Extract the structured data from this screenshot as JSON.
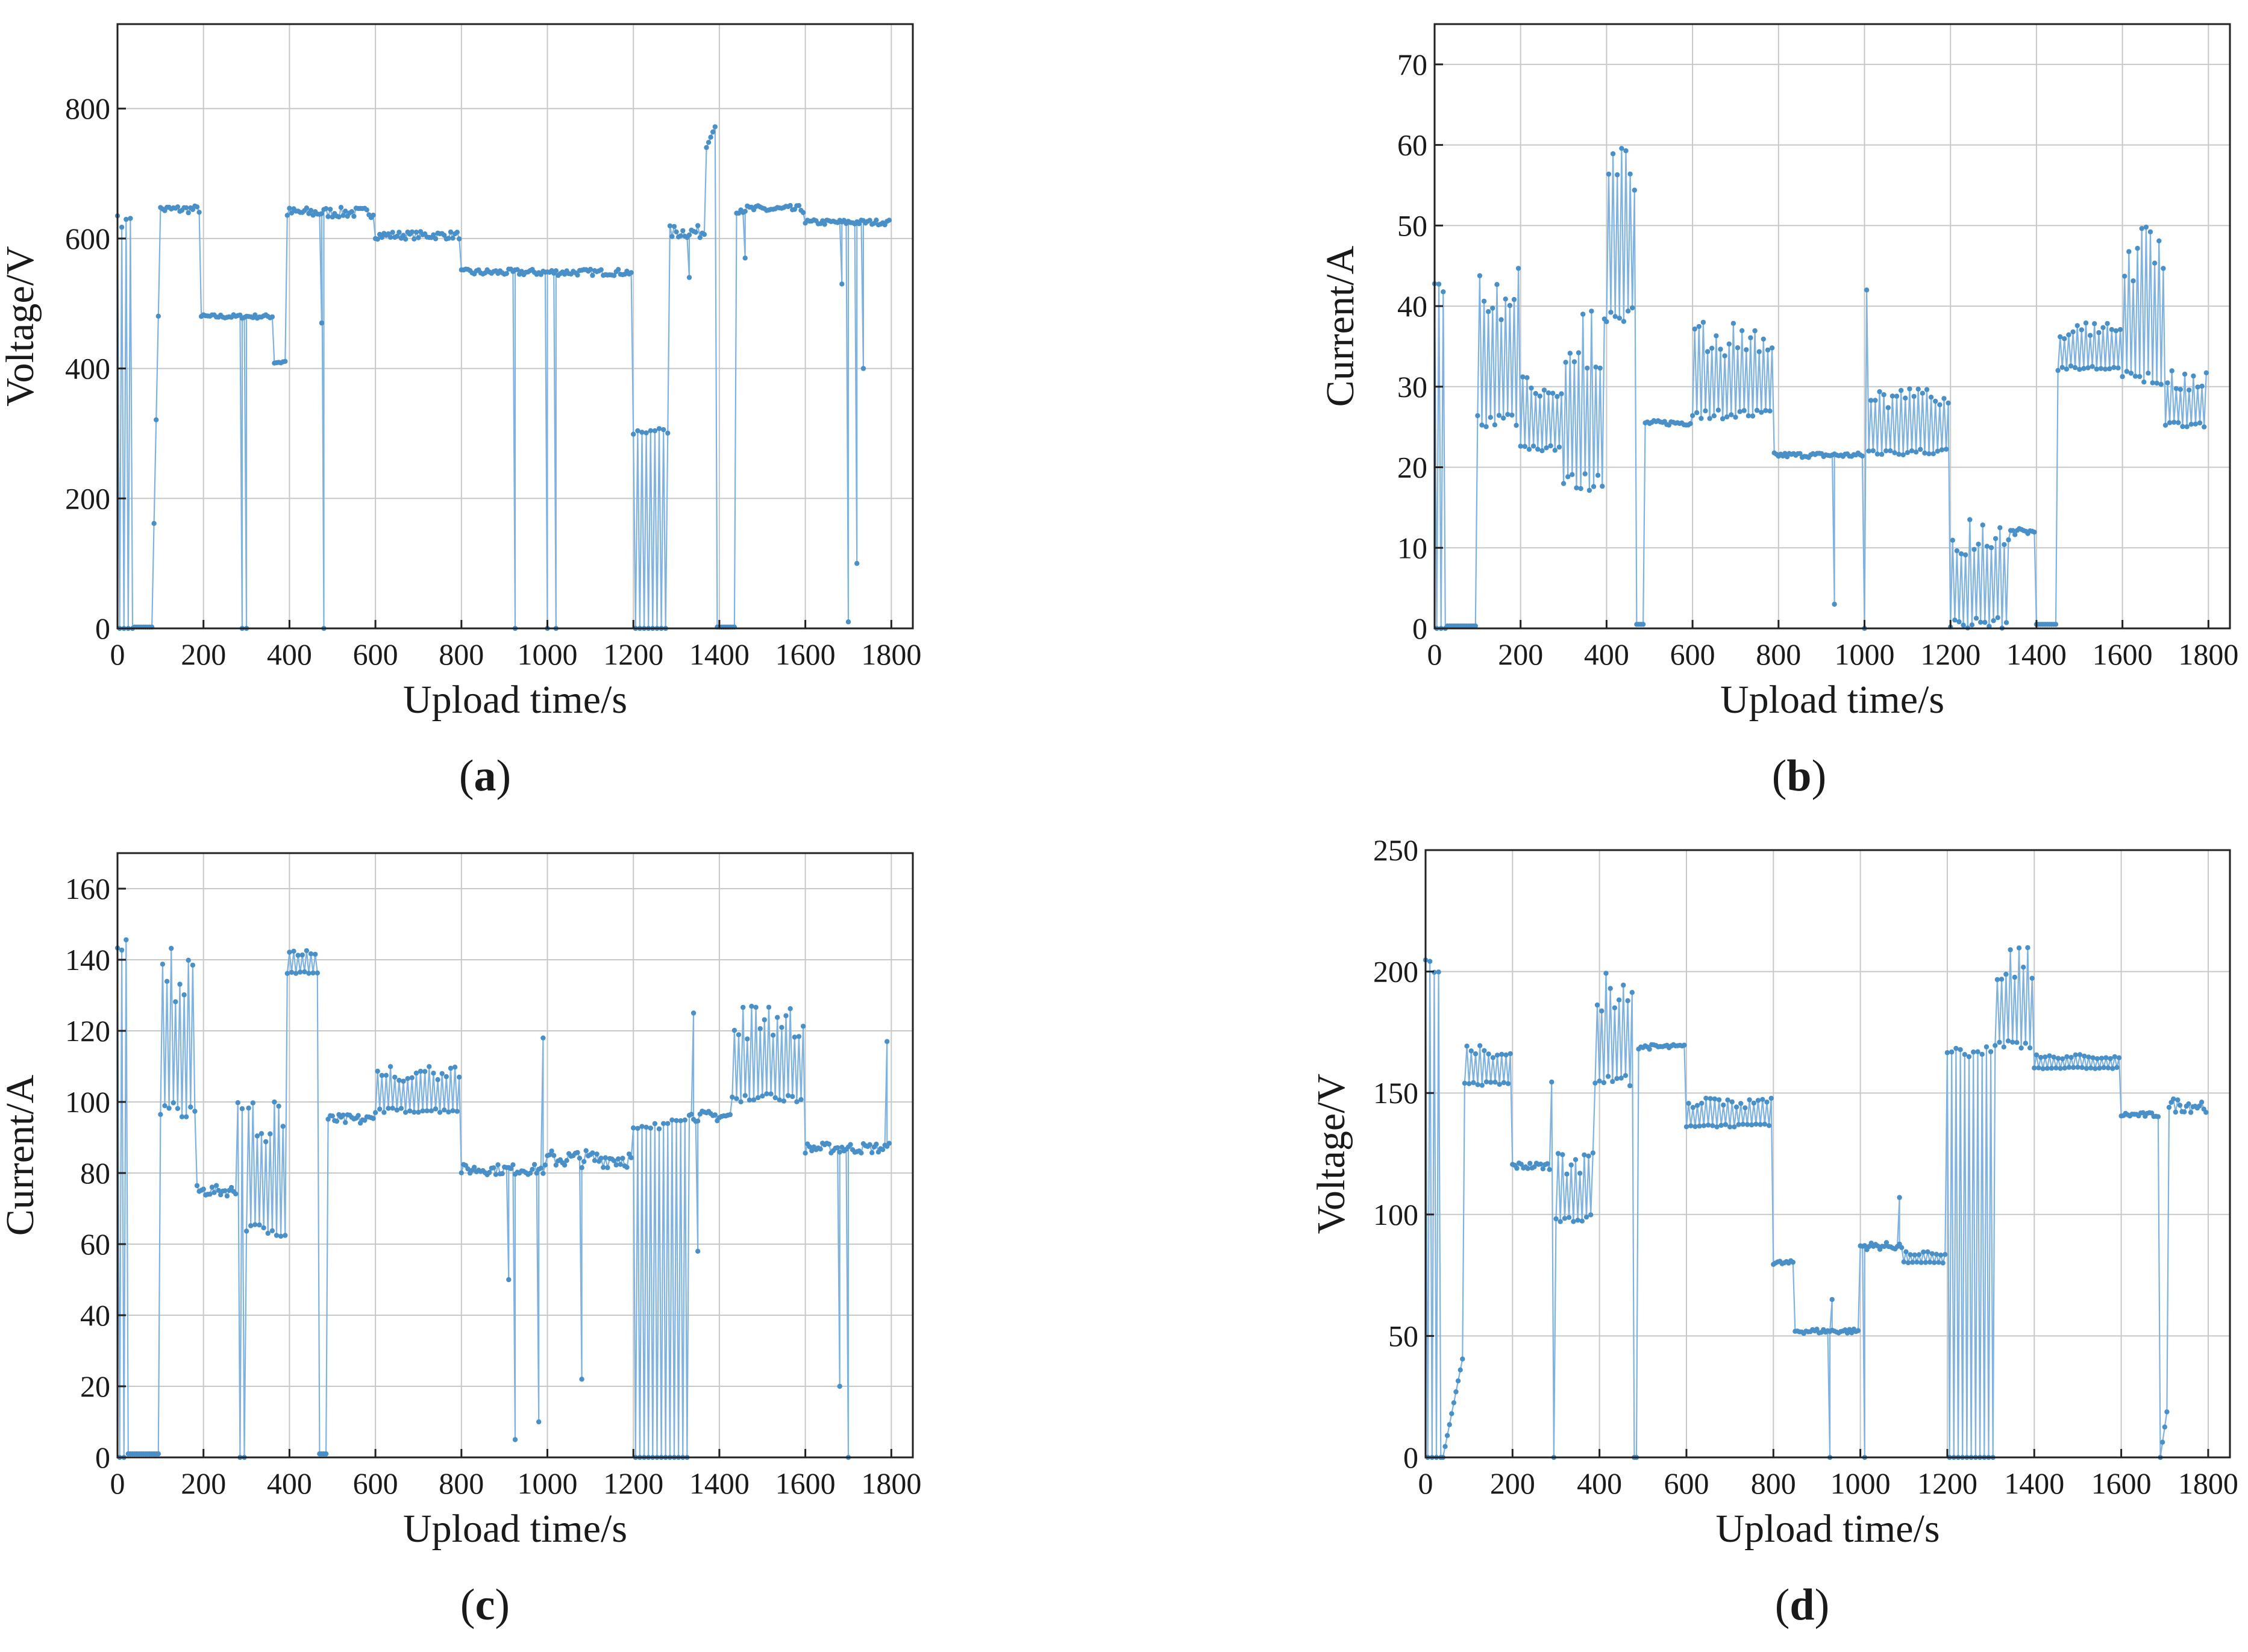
{
  "chart_data": [
    {
      "type": "line",
      "panel_label": "a",
      "xlabel": "Upload time/s",
      "ylabel": "Voltage/V",
      "xlim": [
        0,
        1850
      ],
      "ylim": [
        0,
        930
      ],
      "xticks": [
        0,
        200,
        400,
        600,
        800,
        1000,
        1200,
        1400,
        1600,
        1800
      ],
      "yticks": [
        0,
        200,
        400,
        600,
        800
      ],
      "grid": true,
      "color": "#4a90c8",
      "segments": [
        {
          "x": [
            0,
            40
          ],
          "mode": "spike",
          "base": 0,
          "top": 635
        },
        {
          "x": [
            40,
            80
          ],
          "mode": "flat",
          "y": 2
        },
        {
          "x": [
            80,
            100
          ],
          "mode": "ramp",
          "y0": 2,
          "y1": 640
        },
        {
          "x": [
            100,
            195
          ],
          "mode": "flat",
          "y": 645,
          "noise": 6
        },
        {
          "x": [
            195,
            365
          ],
          "mode": "flat",
          "y": 480,
          "noise": 3,
          "drops": [
            [
              290,
              0
            ],
            [
              300,
              0
            ]
          ]
        },
        {
          "x": [
            365,
            395
          ],
          "mode": "flat",
          "y": 410,
          "noise": 4
        },
        {
          "x": [
            395,
            600
          ],
          "mode": "flat",
          "y": 640,
          "noise": 8,
          "drops": [
            [
              475,
              470
            ],
            [
              480,
              0
            ]
          ]
        },
        {
          "x": [
            600,
            800
          ],
          "mode": "flat",
          "y": 605,
          "noise": 6
        },
        {
          "x": [
            800,
            1200
          ],
          "mode": "flat",
          "y": 548,
          "noise": 5,
          "drops": [
            [
              925,
              0
            ],
            [
              1000,
              0
            ],
            [
              1020,
              0
            ]
          ]
        },
        {
          "x": [
            1200,
            1285
          ],
          "mode": "spike",
          "base": 0,
          "top": 308
        },
        {
          "x": [
            1285,
            1370
          ],
          "mode": "flat",
          "y": 610,
          "noise": 10,
          "drops": [
            [
              1330,
              540
            ]
          ]
        },
        {
          "x": [
            1370,
            1395
          ],
          "mode": "ramp",
          "y0": 740,
          "y1": 780
        },
        {
          "x": [
            1395,
            1440
          ],
          "mode": "flat",
          "y": 2
        },
        {
          "x": [
            1440,
            1600
          ],
          "mode": "flat",
          "y": 645,
          "noise": 6,
          "drops": [
            [
              1460,
              570
            ]
          ]
        },
        {
          "x": [
            1600,
            1800
          ],
          "mode": "flat",
          "y": 625,
          "noise": 4,
          "drops": [
            [
              1685,
              530
            ],
            [
              1700,
              10
            ],
            [
              1720,
              100
            ],
            [
              1735,
              400
            ]
          ]
        }
      ]
    },
    {
      "type": "line",
      "panel_label": "b",
      "xlabel": "Upload time/s",
      "ylabel": "Current/A",
      "xlim": [
        0,
        1850
      ],
      "ylim": [
        0,
        75
      ],
      "xticks": [
        0,
        200,
        400,
        600,
        800,
        1000,
        1200,
        1400,
        1600,
        1800
      ],
      "yticks": [
        0,
        10,
        20,
        30,
        40,
        50,
        60,
        70
      ],
      "grid": true,
      "color": "#4a90c8",
      "segments": [
        {
          "x": [
            0,
            30
          ],
          "mode": "spike",
          "base": 0,
          "top": 43
        },
        {
          "x": [
            30,
            100
          ],
          "mode": "flat",
          "y": 0.3
        },
        {
          "x": [
            100,
            200
          ],
          "mode": "alt",
          "low": 25,
          "high": 45
        },
        {
          "x": [
            200,
            300
          ],
          "mode": "alt",
          "low": 22,
          "high": 32
        },
        {
          "x": [
            300,
            400
          ],
          "mode": "alt",
          "low": 17,
          "high": 40
        },
        {
          "x": [
            400,
            470
          ],
          "mode": "alt",
          "low": 38,
          "high": 60
        },
        {
          "x": [
            470,
            490
          ],
          "mode": "flat",
          "y": 0.5
        },
        {
          "x": [
            490,
            600
          ],
          "mode": "flat",
          "y": 25.5,
          "noise": 0.3
        },
        {
          "x": [
            600,
            790
          ],
          "mode": "alt",
          "low": 26,
          "high": 38
        },
        {
          "x": [
            790,
            1000
          ],
          "mode": "flat",
          "y": 21.5,
          "noise": 0.3,
          "drops": [
            [
              930,
              3
            ],
            [
              1000,
              0
            ],
            [
              1005,
              42
            ]
          ]
        },
        {
          "x": [
            1010,
            1200
          ],
          "mode": "alt",
          "low": 21.5,
          "high": 30
        },
        {
          "x": [
            1200,
            1340
          ],
          "mode": "alt",
          "low": 0,
          "high": 14
        },
        {
          "x": [
            1340,
            1400
          ],
          "mode": "flat",
          "y": 12,
          "noise": 0.4
        },
        {
          "x": [
            1400,
            1450
          ],
          "mode": "flat",
          "y": 0.5
        },
        {
          "x": [
            1450,
            1600
          ],
          "mode": "alt",
          "low": 32,
          "high": 38
        },
        {
          "x": [
            1600,
            1700
          ],
          "mode": "alt",
          "low": 30,
          "high": 50
        },
        {
          "x": [
            1700,
            1800
          ],
          "mode": "alt",
          "low": 25,
          "high": 32
        }
      ]
    },
    {
      "type": "line",
      "panel_label": "c",
      "xlabel": "Upload time/s",
      "ylabel": "Current/A",
      "xlim": [
        0,
        1850
      ],
      "ylim": [
        0,
        170
      ],
      "xticks": [
        0,
        200,
        400,
        600,
        800,
        1000,
        1200,
        1400,
        1600,
        1800
      ],
      "yticks": [
        0,
        20,
        40,
        60,
        80,
        100,
        120,
        140,
        160
      ],
      "grid": true,
      "color": "#4a90c8",
      "segments": [
        {
          "x": [
            0,
            25
          ],
          "mode": "spike",
          "base": 0,
          "top": 146
        },
        {
          "x": [
            25,
            100
          ],
          "mode": "flat",
          "y": 1
        },
        {
          "x": [
            100,
            185
          ],
          "mode": "alt",
          "low": 95,
          "high": 146
        },
        {
          "x": [
            185,
            280
          ],
          "mode": "flat",
          "y": 75,
          "noise": 1.5
        },
        {
          "x": [
            280,
            300
          ],
          "mode": "spike",
          "base": 0,
          "top": 100
        },
        {
          "x": [
            300,
            395
          ],
          "mode": "alt",
          "low": 62,
          "high": 100
        },
        {
          "x": [
            395,
            470
          ],
          "mode": "alt",
          "low": 136,
          "high": 143
        },
        {
          "x": [
            470,
            490
          ],
          "mode": "flat",
          "y": 1
        },
        {
          "x": [
            490,
            600
          ],
          "mode": "flat",
          "y": 95,
          "noise": 1.5
        },
        {
          "x": [
            600,
            800
          ],
          "mode": "alt",
          "low": 97,
          "high": 110
        },
        {
          "x": [
            800,
            1000
          ],
          "mode": "flat",
          "y": 81,
          "noise": 1.5,
          "drops": [
            [
              910,
              50
            ],
            [
              925,
              5
            ],
            [
              980,
              10
            ],
            [
              990,
              118
            ]
          ]
        },
        {
          "x": [
            1000,
            1200
          ],
          "mode": "flat",
          "y": 84,
          "noise": 2.5,
          "drops": [
            [
              1080,
              22
            ]
          ]
        },
        {
          "x": [
            1200,
            1330
          ],
          "mode": "spike",
          "base": 0,
          "top": 95
        },
        {
          "x": [
            1330,
            1430
          ],
          "mode": "flat",
          "y": 96,
          "noise": 1.5,
          "drops": [
            [
              1340,
              125
            ],
            [
              1350,
              58
            ]
          ]
        },
        {
          "x": [
            1430,
            1600
          ],
          "mode": "alt",
          "low": 100,
          "high": 127
        },
        {
          "x": [
            1600,
            1800
          ],
          "mode": "flat",
          "y": 87,
          "noise": 1.5,
          "drops": [
            [
              1680,
              20
            ],
            [
              1700,
              0
            ],
            [
              1790,
              117
            ]
          ]
        }
      ]
    },
    {
      "type": "line",
      "panel_label": "d",
      "xlabel": "Upload time/s",
      "ylabel": "Voltage/V",
      "xlim": [
        0,
        1850
      ],
      "ylim": [
        0,
        250
      ],
      "xticks": [
        0,
        200,
        400,
        600,
        800,
        1000,
        1200,
        1400,
        1600,
        1800
      ],
      "yticks": [
        0,
        50,
        100,
        150,
        200,
        250
      ],
      "grid": true,
      "color": "#4a90c8",
      "segments": [
        {
          "x": [
            0,
            40
          ],
          "mode": "spike",
          "base": 0,
          "top": 205
        },
        {
          "x": [
            40,
            90
          ],
          "mode": "ramp",
          "y0": 0,
          "y1": 45
        },
        {
          "x": [
            90,
            200
          ],
          "mode": "alt",
          "low": 153,
          "high": 170
        },
        {
          "x": [
            200,
            290
          ],
          "mode": "flat",
          "y": 120,
          "noise": 1.5
        },
        {
          "x": [
            290,
            300
          ],
          "mode": "spike",
          "base": 0,
          "top": 158
        },
        {
          "x": [
            300,
            390
          ],
          "mode": "alt",
          "low": 97,
          "high": 127
        },
        {
          "x": [
            390,
            480
          ],
          "mode": "alt",
          "low": 153,
          "high": 200
        },
        {
          "x": [
            480,
            490
          ],
          "mode": "flat",
          "y": 0
        },
        {
          "x": [
            490,
            600
          ],
          "mode": "flat",
          "y": 169,
          "noise": 1
        },
        {
          "x": [
            600,
            800
          ],
          "mode": "alt",
          "low": 136,
          "high": 148
        },
        {
          "x": [
            800,
            850
          ],
          "mode": "flat",
          "y": 80,
          "noise": 1
        },
        {
          "x": [
            850,
            1000
          ],
          "mode": "flat",
          "y": 52,
          "noise": 1,
          "drops": [
            [
              930,
              0
            ],
            [
              935,
              65
            ]
          ]
        },
        {
          "x": [
            1000,
            1100
          ],
          "mode": "flat",
          "y": 87,
          "noise": 1.5,
          "drops": [
            [
              1010,
              0
            ],
            [
              1090,
              107
            ]
          ]
        },
        {
          "x": [
            1100,
            1200
          ],
          "mode": "alt",
          "low": 80,
          "high": 85
        },
        {
          "x": [
            1200,
            1310
          ],
          "mode": "spike",
          "base": 0,
          "top": 170
        },
        {
          "x": [
            1310,
            1400
          ],
          "mode": "alt",
          "low": 168,
          "high": 210
        },
        {
          "x": [
            1400,
            1600
          ],
          "mode": "alt",
          "low": 160,
          "high": 166
        },
        {
          "x": [
            1600,
            1690
          ],
          "mode": "flat",
          "y": 141,
          "noise": 1
        },
        {
          "x": [
            1690,
            1710
          ],
          "mode": "ramp",
          "y0": 0,
          "y1": 25
        },
        {
          "x": [
            1710,
            1800
          ],
          "mode": "flat",
          "y": 145,
          "noise": 3
        }
      ]
    }
  ],
  "captions": [
    "(a)",
    "(b)",
    "(c)",
    "(d)"
  ]
}
